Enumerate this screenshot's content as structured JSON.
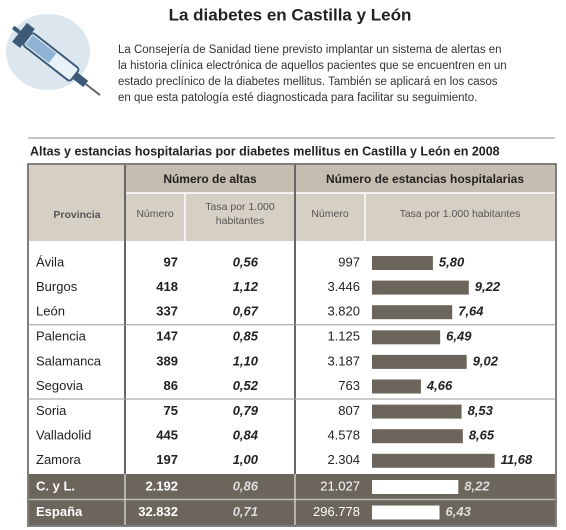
{
  "header": {
    "title": "La diabetes en Castilla y León",
    "body_lines": [
      "La Consejería de Sanidad tiene previsto implantar un sistema de alertas en",
      "la historia clínica electrónica de aquellos pacientes que se encuentren en un",
      "estado preclínico de la diabetes mellitus. También se aplicará en los casos",
      "en que esta patología esté diagnosticada para facilitar su seguimiento."
    ]
  },
  "table": {
    "title": "Altas  y estancias hospitalarias por diabetes mellitus en Castilla y León en 2008",
    "group_headers": [
      "Número de altas",
      "Número de estancias hospitalarias"
    ],
    "column_headers": {
      "province": "Provincia",
      "altas_number": "Número",
      "altas_rate": [
        "Tasa por 1.000",
        "habitantes"
      ],
      "stays_number": "Número",
      "stays_rate": "Tasa por 1.000 habitantes"
    },
    "rows": [
      [
        "Ávila",
        "97",
        "0,56",
        "997",
        {
          "value": 5.8,
          "label": "5,80"
        }
      ],
      [
        "Burgos",
        "418",
        "1,12",
        "3.446",
        {
          "value": 9.22,
          "label": "9,22"
        }
      ],
      [
        "León",
        "337",
        "0,67",
        "3.820",
        {
          "value": 7.64,
          "label": "7,64"
        }
      ],
      [
        "Palencia",
        "147",
        "0,85",
        "1.125",
        {
          "value": 6.49,
          "label": "6,49"
        }
      ],
      [
        "Salamanca",
        "389",
        "1,10",
        "3.187",
        {
          "value": 9.02,
          "label": "9,02"
        }
      ],
      [
        "Segovia",
        "86",
        "0,52",
        "763",
        {
          "value": 4.66,
          "label": "4,66"
        }
      ],
      [
        "Soria",
        "75",
        "0,79",
        "807",
        {
          "value": 8.53,
          "label": "8,53"
        }
      ],
      [
        "Valladolid",
        "445",
        "0,84",
        "4.578",
        {
          "value": 8.65,
          "label": "8,65"
        }
      ],
      [
        "Zamora",
        "197",
        "1,00",
        "2.304",
        {
          "value": 11.68,
          "label": "11,68"
        }
      ]
    ],
    "totals": [
      [
        "C. y L.",
        "2.192",
        "0,86",
        "21.027",
        {
          "value": 8.22,
          "label": "8,22"
        }
      ],
      [
        "España",
        "32.832",
        "0,71",
        "296.778",
        {
          "value": 6.43,
          "label": "6,43"
        }
      ]
    ]
  }
}
